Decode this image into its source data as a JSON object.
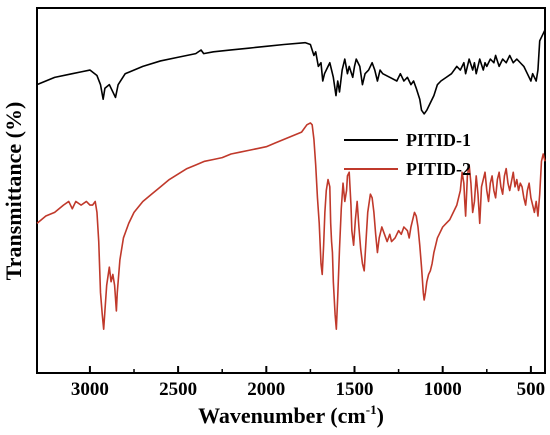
{
  "chart_data": {
    "type": "line",
    "xlabel_main": "Wavenumber (cm",
    "xlabel_sup": "-1",
    "xlabel_end": ")",
    "ylabel": "Transmittance (%)",
    "xlim": [
      3300,
      420
    ],
    "x_reversed": true,
    "ylim": [
      0,
      100
    ],
    "y_ticks_labeled": false,
    "x_ticks": [
      3000,
      2500,
      2000,
      1500,
      1000,
      500
    ],
    "x_tick_labels": [
      "3000",
      "2500",
      "2000",
      "1500",
      "1000",
      "500"
    ],
    "legend_position": "right",
    "series": [
      {
        "name": "PITID-1",
        "color": "#000000",
        "points": [
          [
            3300,
            79
          ],
          [
            3200,
            81
          ],
          [
            3100,
            82
          ],
          [
            3050,
            82.5
          ],
          [
            3000,
            83
          ],
          [
            2960,
            81.5
          ],
          [
            2940,
            79
          ],
          [
            2925,
            75
          ],
          [
            2915,
            78
          ],
          [
            2890,
            79
          ],
          [
            2870,
            77
          ],
          [
            2855,
            75.5
          ],
          [
            2840,
            79
          ],
          [
            2800,
            82
          ],
          [
            2700,
            84
          ],
          [
            2600,
            85.5
          ],
          [
            2500,
            86.5
          ],
          [
            2400,
            87.5
          ],
          [
            2370,
            88.5
          ],
          [
            2355,
            87.5
          ],
          [
            2300,
            88
          ],
          [
            2200,
            88.5
          ],
          [
            2100,
            89
          ],
          [
            2000,
            89.5
          ],
          [
            1900,
            90
          ],
          [
            1780,
            90.5
          ],
          [
            1750,
            90
          ],
          [
            1730,
            87
          ],
          [
            1720,
            88
          ],
          [
            1705,
            84
          ],
          [
            1690,
            85
          ],
          [
            1680,
            80
          ],
          [
            1670,
            82
          ],
          [
            1650,
            84
          ],
          [
            1640,
            85
          ],
          [
            1620,
            81
          ],
          [
            1605,
            76
          ],
          [
            1595,
            80
          ],
          [
            1585,
            77
          ],
          [
            1570,
            83
          ],
          [
            1555,
            86
          ],
          [
            1540,
            82
          ],
          [
            1530,
            84
          ],
          [
            1510,
            81
          ],
          [
            1500,
            84
          ],
          [
            1490,
            86
          ],
          [
            1470,
            84
          ],
          [
            1455,
            79
          ],
          [
            1440,
            82
          ],
          [
            1420,
            83
          ],
          [
            1400,
            85
          ],
          [
            1385,
            83
          ],
          [
            1370,
            80
          ],
          [
            1355,
            83
          ],
          [
            1340,
            82
          ],
          [
            1300,
            81
          ],
          [
            1260,
            80
          ],
          [
            1240,
            82
          ],
          [
            1220,
            80
          ],
          [
            1200,
            81
          ],
          [
            1180,
            79
          ],
          [
            1165,
            80
          ],
          [
            1150,
            78
          ],
          [
            1130,
            75
          ],
          [
            1120,
            72
          ],
          [
            1105,
            71
          ],
          [
            1090,
            72
          ],
          [
            1070,
            74
          ],
          [
            1050,
            76
          ],
          [
            1030,
            79
          ],
          [
            1010,
            80
          ],
          [
            980,
            81
          ],
          [
            950,
            82
          ],
          [
            920,
            84
          ],
          [
            900,
            83
          ],
          [
            880,
            85
          ],
          [
            870,
            82
          ],
          [
            860,
            84
          ],
          [
            850,
            86
          ],
          [
            830,
            83
          ],
          [
            820,
            85
          ],
          [
            810,
            82
          ],
          [
            800,
            84
          ],
          [
            790,
            86
          ],
          [
            770,
            83
          ],
          [
            760,
            85
          ],
          [
            750,
            84
          ],
          [
            730,
            86
          ],
          [
            710,
            85
          ],
          [
            700,
            87
          ],
          [
            680,
            84
          ],
          [
            660,
            86
          ],
          [
            640,
            85
          ],
          [
            620,
            87
          ],
          [
            600,
            85
          ],
          [
            580,
            86
          ],
          [
            560,
            85
          ],
          [
            540,
            84
          ],
          [
            520,
            82
          ],
          [
            500,
            80
          ],
          [
            490,
            82
          ],
          [
            470,
            80
          ],
          [
            460,
            83
          ],
          [
            450,
            91
          ],
          [
            440,
            92
          ],
          [
            430,
            93
          ],
          [
            420,
            94
          ]
        ]
      },
      {
        "name": "PITID-2",
        "color": "#c0392b",
        "points": [
          [
            3300,
            41
          ],
          [
            3250,
            43
          ],
          [
            3200,
            44
          ],
          [
            3150,
            46
          ],
          [
            3120,
            47
          ],
          [
            3100,
            45
          ],
          [
            3080,
            47
          ],
          [
            3050,
            46
          ],
          [
            3020,
            47
          ],
          [
            3000,
            46
          ],
          [
            2985,
            46
          ],
          [
            2970,
            47
          ],
          [
            2960,
            44
          ],
          [
            2950,
            36
          ],
          [
            2940,
            22
          ],
          [
            2930,
            16
          ],
          [
            2922,
            12
          ],
          [
            2915,
            17
          ],
          [
            2905,
            24
          ],
          [
            2890,
            29
          ],
          [
            2880,
            25
          ],
          [
            2870,
            27
          ],
          [
            2860,
            24
          ],
          [
            2850,
            17
          ],
          [
            2845,
            22
          ],
          [
            2830,
            31
          ],
          [
            2810,
            37
          ],
          [
            2780,
            41
          ],
          [
            2750,
            44
          ],
          [
            2700,
            47
          ],
          [
            2650,
            49
          ],
          [
            2600,
            51
          ],
          [
            2550,
            53
          ],
          [
            2500,
            54.5
          ],
          [
            2450,
            56
          ],
          [
            2400,
            57
          ],
          [
            2350,
            58
          ],
          [
            2300,
            58.5
          ],
          [
            2250,
            59
          ],
          [
            2200,
            60
          ],
          [
            2150,
            60.5
          ],
          [
            2100,
            61
          ],
          [
            2050,
            61.5
          ],
          [
            2000,
            62
          ],
          [
            1950,
            63
          ],
          [
            1900,
            64
          ],
          [
            1850,
            65
          ],
          [
            1800,
            66
          ],
          [
            1770,
            68
          ],
          [
            1750,
            68.5
          ],
          [
            1740,
            68
          ],
          [
            1730,
            64
          ],
          [
            1720,
            57
          ],
          [
            1710,
            48
          ],
          [
            1700,
            41
          ],
          [
            1690,
            30
          ],
          [
            1683,
            27
          ],
          [
            1675,
            35
          ],
          [
            1668,
            44
          ],
          [
            1660,
            50
          ],
          [
            1650,
            53
          ],
          [
            1640,
            51
          ],
          [
            1635,
            41
          ],
          [
            1630,
            36
          ],
          [
            1625,
            33
          ],
          [
            1620,
            25
          ],
          [
            1610,
            16
          ],
          [
            1603,
            12
          ],
          [
            1595,
            21
          ],
          [
            1585,
            34
          ],
          [
            1575,
            45
          ],
          [
            1565,
            52
          ],
          [
            1555,
            47
          ],
          [
            1545,
            50
          ],
          [
            1540,
            54
          ],
          [
            1530,
            55
          ],
          [
            1520,
            46
          ],
          [
            1515,
            39
          ],
          [
            1505,
            35
          ],
          [
            1495,
            42
          ],
          [
            1485,
            47
          ],
          [
            1475,
            40
          ],
          [
            1465,
            34
          ],
          [
            1455,
            30
          ],
          [
            1445,
            28
          ],
          [
            1435,
            36
          ],
          [
            1425,
            44
          ],
          [
            1410,
            49
          ],
          [
            1400,
            48
          ],
          [
            1390,
            44
          ],
          [
            1380,
            38
          ],
          [
            1370,
            33
          ],
          [
            1360,
            37
          ],
          [
            1345,
            40
          ],
          [
            1330,
            38
          ],
          [
            1315,
            36
          ],
          [
            1300,
            38
          ],
          [
            1290,
            36
          ],
          [
            1270,
            37
          ],
          [
            1250,
            39
          ],
          [
            1235,
            38
          ],
          [
            1220,
            40
          ],
          [
            1200,
            39
          ],
          [
            1190,
            37
          ],
          [
            1180,
            40
          ],
          [
            1170,
            42
          ],
          [
            1160,
            44
          ],
          [
            1150,
            43
          ],
          [
            1140,
            40
          ],
          [
            1130,
            35
          ],
          [
            1120,
            29
          ],
          [
            1110,
            22
          ],
          [
            1105,
            20
          ],
          [
            1098,
            22
          ],
          [
            1090,
            25
          ],
          [
            1080,
            27
          ],
          [
            1070,
            28
          ],
          [
            1060,
            30
          ],
          [
            1050,
            33
          ],
          [
            1040,
            35
          ],
          [
            1030,
            37
          ],
          [
            1020,
            38
          ],
          [
            1000,
            40
          ],
          [
            980,
            41
          ],
          [
            960,
            42
          ],
          [
            940,
            44
          ],
          [
            920,
            46
          ],
          [
            900,
            50
          ],
          [
            890,
            55
          ],
          [
            880,
            52
          ],
          [
            875,
            47
          ],
          [
            870,
            43
          ],
          [
            860,
            54
          ],
          [
            850,
            57
          ],
          [
            840,
            52
          ],
          [
            830,
            44
          ],
          [
            820,
            47
          ],
          [
            810,
            54
          ],
          [
            800,
            49
          ],
          [
            790,
            41
          ],
          [
            780,
            51
          ],
          [
            770,
            53
          ],
          [
            760,
            55
          ],
          [
            750,
            50
          ],
          [
            740,
            47
          ],
          [
            730,
            52
          ],
          [
            720,
            54
          ],
          [
            710,
            50
          ],
          [
            700,
            48
          ],
          [
            690,
            53
          ],
          [
            680,
            55
          ],
          [
            670,
            51
          ],
          [
            660,
            49
          ],
          [
            650,
            54
          ],
          [
            640,
            56
          ],
          [
            630,
            52
          ],
          [
            620,
            50
          ],
          [
            600,
            55
          ],
          [
            590,
            51
          ],
          [
            580,
            53
          ],
          [
            570,
            50
          ],
          [
            560,
            52
          ],
          [
            550,
            51
          ],
          [
            540,
            48
          ],
          [
            530,
            46
          ],
          [
            520,
            50
          ],
          [
            510,
            52
          ],
          [
            500,
            48
          ],
          [
            490,
            46
          ],
          [
            480,
            44
          ],
          [
            470,
            47
          ],
          [
            460,
            43
          ],
          [
            450,
            49
          ],
          [
            440,
            58
          ],
          [
            430,
            60
          ],
          [
            420,
            58
          ]
        ]
      }
    ]
  }
}
